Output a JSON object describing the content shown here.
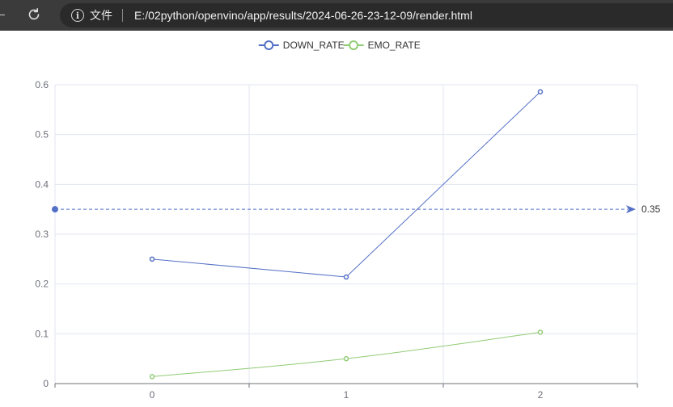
{
  "browser": {
    "file_label": "文件",
    "url": "E:/02python/openvino/app/results/2024-06-26-23-12-09/render.html"
  },
  "chart_data": {
    "type": "line",
    "categories": [
      "0",
      "1",
      "2"
    ],
    "series": [
      {
        "name": "DOWN_RATE",
        "color": "#5470c6",
        "values": [
          0.25,
          0.214,
          0.586
        ],
        "smooth": false
      },
      {
        "name": "EMO_RATE",
        "color": "#91cc75",
        "values": [
          0.014,
          0.05,
          0.103
        ],
        "smooth": true
      }
    ],
    "y_ticks": [
      "0",
      "0.1",
      "0.2",
      "0.3",
      "0.4",
      "0.5",
      "0.6"
    ],
    "ylim": [
      0,
      0.6
    ],
    "grid": true,
    "legend": "top-center",
    "mark_line": {
      "value": 0.35,
      "label": "0.35",
      "color": "#5470c6"
    }
  }
}
